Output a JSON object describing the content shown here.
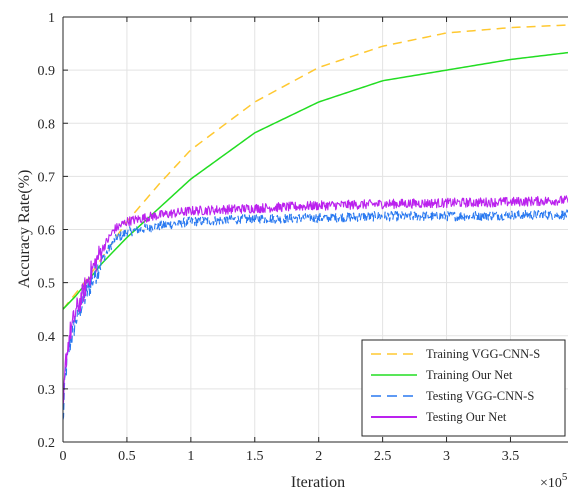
{
  "chart_data": {
    "type": "line",
    "xlabel": "Iteration",
    "ylabel": "Accuracy Rate(%)",
    "x_exponent_label": "×10",
    "x_exponent_power": "5",
    "xlim": [
      0,
      3.95
    ],
    "ylim": [
      0.2,
      1.0
    ],
    "xticks": [
      "0",
      "0.5",
      "1",
      "1.5",
      "2",
      "2.5",
      "3",
      "3.5"
    ],
    "xtick_values": [
      0,
      0.5,
      1,
      1.5,
      2,
      2.5,
      3,
      3.5
    ],
    "yticks": [
      "0.2",
      "0.3",
      "0.4",
      "0.5",
      "0.6",
      "0.7",
      "0.8",
      "0.9",
      "1"
    ],
    "ytick_values": [
      0.2,
      0.3,
      0.4,
      0.5,
      0.6,
      0.7,
      0.8,
      0.9,
      1.0
    ],
    "grid": true,
    "legend_position": "bottom-right",
    "series": [
      {
        "name": "Training VGG-CNN-S",
        "color": "#FFC830",
        "dash": "dashed",
        "x": [
          0,
          0.1,
          0.2,
          0.3,
          0.4,
          0.5,
          0.75,
          1.0,
          1.5,
          2.0,
          2.5,
          3.0,
          3.5,
          3.95
        ],
        "y": [
          0.45,
          0.48,
          0.51,
          0.545,
          0.58,
          0.615,
          0.685,
          0.75,
          0.84,
          0.905,
          0.945,
          0.97,
          0.98,
          0.985
        ]
      },
      {
        "name": "Training Our Net",
        "color": "#22DD22",
        "dash": "solid",
        "x": [
          0,
          0.1,
          0.2,
          0.3,
          0.4,
          0.5,
          0.75,
          1.0,
          1.5,
          2.0,
          2.5,
          3.0,
          3.5,
          3.95
        ],
        "y": [
          0.45,
          0.475,
          0.505,
          0.535,
          0.56,
          0.585,
          0.64,
          0.695,
          0.782,
          0.84,
          0.88,
          0.9,
          0.92,
          0.933
        ]
      },
      {
        "name": "Testing VGG-CNN-S",
        "color": "#2878F0",
        "dash": "dashed",
        "noisy": true,
        "x": [
          0,
          0.02,
          0.05,
          0.1,
          0.15,
          0.2,
          0.3,
          0.4,
          0.5,
          0.7,
          1.0,
          1.5,
          2.0,
          2.5,
          3.0,
          3.5,
          3.95
        ],
        "y": [
          0.235,
          0.33,
          0.38,
          0.43,
          0.46,
          0.49,
          0.54,
          0.58,
          0.595,
          0.605,
          0.615,
          0.62,
          0.622,
          0.625,
          0.625,
          0.627,
          0.628
        ]
      },
      {
        "name": "Testing Our Net",
        "color": "#BB22EE",
        "dash": "solid",
        "noisy": true,
        "x": [
          0,
          0.02,
          0.05,
          0.1,
          0.15,
          0.2,
          0.3,
          0.4,
          0.5,
          0.7,
          1.0,
          1.5,
          2.0,
          2.5,
          3.0,
          3.5,
          3.95
        ],
        "y": [
          0.25,
          0.35,
          0.4,
          0.445,
          0.475,
          0.51,
          0.56,
          0.6,
          0.615,
          0.625,
          0.635,
          0.64,
          0.645,
          0.648,
          0.65,
          0.652,
          0.655
        ]
      }
    ]
  }
}
